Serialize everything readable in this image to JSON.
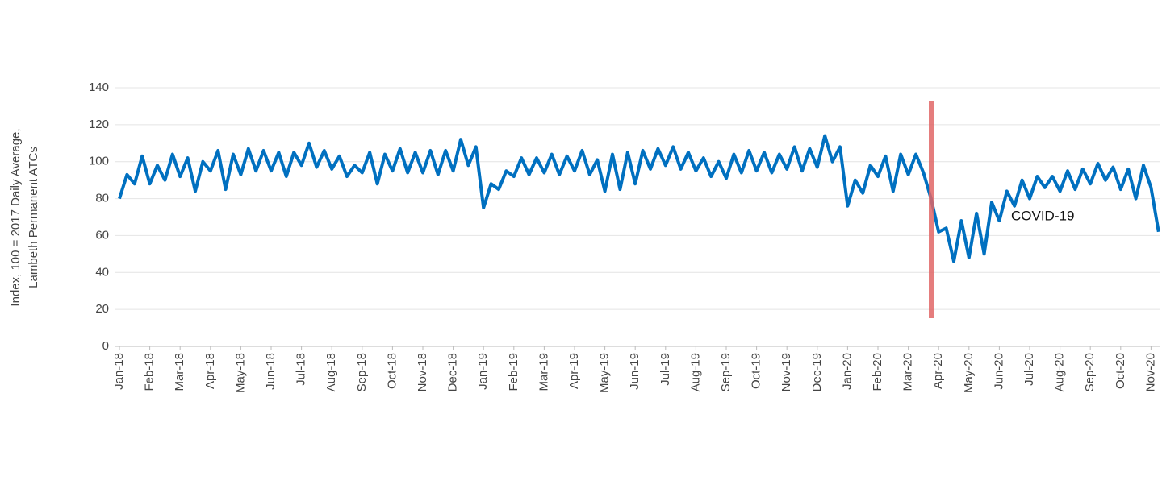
{
  "chart_data": {
    "type": "line",
    "y_label": [
      "Index, 100 = 2017 Daily Average,",
      "Lambeth Permanent ATCs"
    ],
    "annotation": "COVID-19",
    "categories": [
      "Jan-18",
      null,
      null,
      null,
      "Feb-18",
      null,
      null,
      null,
      "Mar-18",
      null,
      null,
      null,
      "Apr-18",
      null,
      null,
      null,
      "May-18",
      null,
      null,
      null,
      "Jun-18",
      null,
      null,
      null,
      "Jul-18",
      null,
      null,
      null,
      "Aug-18",
      null,
      null,
      null,
      "Sep-18",
      null,
      null,
      null,
      "Oct-18",
      null,
      null,
      null,
      "Nov-18",
      null,
      null,
      null,
      "Dec-18",
      null,
      null,
      null,
      "Jan-19",
      null,
      null,
      null,
      "Feb-19",
      null,
      null,
      null,
      "Mar-19",
      null,
      null,
      null,
      "Apr-19",
      null,
      null,
      null,
      "May-19",
      null,
      null,
      null,
      "Jun-19",
      null,
      null,
      null,
      "Jul-19",
      null,
      null,
      null,
      "Aug-19",
      null,
      null,
      null,
      "Sep-19",
      null,
      null,
      null,
      "Oct-19",
      null,
      null,
      null,
      "Nov-19",
      null,
      null,
      null,
      "Dec-19",
      null,
      null,
      null,
      "Jan-20",
      null,
      null,
      null,
      "Feb-20",
      null,
      null,
      null,
      "Mar-20",
      null,
      null,
      null,
      "Apr-20",
      null,
      null,
      null,
      "May-20",
      null,
      null,
      null,
      "Jun-20",
      null,
      null,
      null,
      "Jul-20",
      null,
      null,
      null,
      "Aug-20",
      null,
      null,
      null,
      "Sep-20",
      null,
      null,
      null,
      "Oct-20",
      null,
      null,
      null,
      "Nov-20",
      null
    ],
    "series": [
      {
        "name": "Index",
        "color": "#0070c0",
        "values": [
          80,
          93,
          88,
          103,
          88,
          98,
          90,
          104,
          92,
          102,
          84,
          100,
          95,
          106,
          85,
          104,
          93,
          107,
          95,
          106,
          95,
          105,
          92,
          105,
          98,
          110,
          97,
          106,
          96,
          103,
          92,
          98,
          94,
          105,
          88,
          104,
          95,
          107,
          94,
          105,
          94,
          106,
          93,
          106,
          95,
          112,
          98,
          108,
          75,
          88,
          85,
          95,
          92,
          102,
          93,
          102,
          94,
          104,
          93,
          103,
          95,
          106,
          93,
          101,
          84,
          104,
          85,
          105,
          88,
          106,
          96,
          107,
          98,
          108,
          96,
          105,
          95,
          102,
          92,
          100,
          91,
          104,
          94,
          106,
          95,
          105,
          94,
          104,
          96,
          108,
          95,
          107,
          97,
          114,
          100,
          108,
          76,
          90,
          83,
          98,
          92,
          103,
          84,
          104,
          93,
          104,
          94,
          80,
          62,
          64,
          46,
          68,
          48,
          72,
          50,
          78,
          68,
          84,
          76,
          90,
          80,
          92,
          86,
          92,
          84,
          95,
          85,
          96,
          88,
          99,
          90,
          97,
          85,
          96,
          80,
          98,
          86,
          62
        ]
      }
    ],
    "ylim": [
      0,
      140
    ],
    "yticks": [
      0,
      20,
      40,
      60,
      80,
      100,
      120,
      140
    ],
    "grid": true
  }
}
